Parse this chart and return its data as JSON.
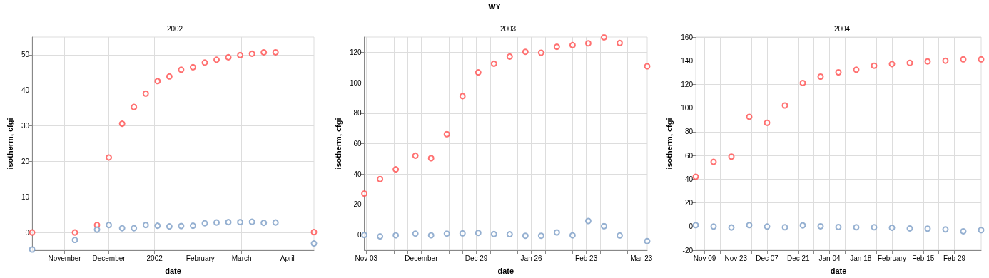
{
  "chart_data": [
    {
      "type": "scatter",
      "title": "2002",
      "annotations": [
        "WY"
      ],
      "xlabel": "date",
      "ylabel": "isotherm, cfgi",
      "grid": true,
      "marker": "circle",
      "x": [
        "2001-10-10",
        "2001-11-08",
        "2001-11-23",
        "2001-12-01",
        "2001-12-10",
        "2001-12-18",
        "2001-12-26",
        "2002-01-03",
        "2002-01-11",
        "2002-01-19",
        "2002-01-27",
        "2002-02-04",
        "2002-02-12",
        "2002-02-20",
        "2002-02-28",
        "2002-03-08",
        "2002-03-16",
        "2002-03-24",
        "2002-04-19"
      ],
      "xlim": [
        "2001-10-10",
        "2002-04-19"
      ],
      "xticks": [
        {
          "value": "2001-11-01",
          "label": "November"
        },
        {
          "value": "2001-12-01",
          "label": "December"
        },
        {
          "value": "2002-01-01",
          "label": "2002"
        },
        {
          "value": "2002-02-01",
          "label": "February"
        },
        {
          "value": "2002-03-01",
          "label": "March"
        },
        {
          "value": "2002-04-01",
          "label": "April"
        }
      ],
      "ylim": [
        -5,
        55
      ],
      "yticks": [
        0,
        10,
        20,
        30,
        40,
        50
      ],
      "series": [
        {
          "color": "#ff4d4d",
          "values": [
            0,
            0,
            2.1,
            21.1,
            30.6,
            35.3,
            39.1,
            42.6,
            43.9,
            45.8,
            46.5,
            47.8,
            48.6,
            49.3,
            49.9,
            50.3,
            50.7,
            50.7,
            0.1
          ]
        },
        {
          "color": "#7b9cc6",
          "values": [
            -4.8,
            -2.1,
            0.8,
            2.1,
            1.2,
            1.2,
            2.1,
            1.9,
            1.7,
            1.8,
            1.9,
            2.6,
            2.8,
            2.9,
            2.9,
            3.0,
            2.7,
            2.8,
            -3.1
          ]
        }
      ]
    },
    {
      "type": "scatter",
      "title": "2003",
      "xlabel": "date",
      "ylabel": "isotherm, cfgi",
      "grid": true,
      "marker": "circle",
      "x": [
        "2002-11-02",
        "2002-11-10",
        "2002-11-18",
        "2002-11-28",
        "2002-12-06",
        "2002-12-14",
        "2002-12-22",
        "2002-12-30",
        "2003-01-07",
        "2003-01-15",
        "2003-01-23",
        "2003-01-31",
        "2003-02-08",
        "2003-02-16",
        "2003-02-24",
        "2003-03-04",
        "2003-03-12",
        "2003-03-26"
      ],
      "xlim": [
        "2002-11-02",
        "2003-03-26"
      ],
      "xticks": [
        {
          "value": "2002-11-03",
          "label": "Nov 03"
        },
        {
          "value": "2002-11-10",
          "label": null
        },
        {
          "value": "2002-11-17",
          "label": null
        },
        {
          "value": "2002-11-24",
          "label": null
        },
        {
          "value": "2002-12-01",
          "label": "December"
        },
        {
          "value": "2002-12-08",
          "label": null
        },
        {
          "value": "2002-12-15",
          "label": null
        },
        {
          "value": "2002-12-22",
          "label": null
        },
        {
          "value": "2002-12-29",
          "label": "Dec 29"
        },
        {
          "value": "2003-01-05",
          "label": null
        },
        {
          "value": "2003-01-12",
          "label": null
        },
        {
          "value": "2003-01-19",
          "label": null
        },
        {
          "value": "2003-01-26",
          "label": "Jan 26"
        },
        {
          "value": "2003-02-02",
          "label": null
        },
        {
          "value": "2003-02-09",
          "label": null
        },
        {
          "value": "2003-02-16",
          "label": null
        },
        {
          "value": "2003-02-23",
          "label": "Feb 23"
        },
        {
          "value": "2003-03-02",
          "label": null
        },
        {
          "value": "2003-03-09",
          "label": null
        },
        {
          "value": "2003-03-16",
          "label": null
        },
        {
          "value": "2003-03-23",
          "label": "Mar 23"
        }
      ],
      "ylim": [
        -10,
        130
      ],
      "yticks": [
        0,
        20,
        40,
        60,
        80,
        100,
        120
      ],
      "series": [
        {
          "color": "#ff4d4d",
          "values": [
            27.2,
            36.7,
            43.1,
            52.1,
            50.4,
            66.2,
            91.2,
            106.8,
            112.5,
            117.2,
            120.3,
            119.7,
            123.6,
            124.7,
            125.9,
            129.8,
            126.1,
            110.8
          ]
        },
        {
          "color": "#7b9cc6",
          "values": [
            0,
            -0.9,
            -0.2,
            0.9,
            -0.2,
            0.9,
            1.1,
            1.4,
            0.6,
            0.5,
            -0.5,
            -0.5,
            1.7,
            -0.2,
            9.2,
            5.8,
            -0.3,
            -4.0
          ]
        }
      ]
    },
    {
      "type": "scatter",
      "title": "2004",
      "xlabel": "date",
      "ylabel": "isotherm, cfgi",
      "grid": true,
      "marker": "circle",
      "x": [
        "2003-11-05",
        "2003-11-13",
        "2003-11-21",
        "2003-11-29",
        "2003-12-07",
        "2003-12-15",
        "2003-12-23",
        "2003-12-31",
        "2004-01-08",
        "2004-01-16",
        "2004-01-24",
        "2004-02-01",
        "2004-02-09",
        "2004-02-17",
        "2004-02-25",
        "2004-03-04",
        "2004-03-12"
      ],
      "xlim": [
        "2003-11-05",
        "2004-03-12"
      ],
      "xticks": [
        {
          "value": "2003-11-09",
          "label": "Nov 09"
        },
        {
          "value": "2003-11-16",
          "label": null
        },
        {
          "value": "2003-11-23",
          "label": "Nov 23"
        },
        {
          "value": "2003-11-30",
          "label": null
        },
        {
          "value": "2003-12-07",
          "label": "Dec 07"
        },
        {
          "value": "2003-12-14",
          "label": null
        },
        {
          "value": "2003-12-21",
          "label": "Dec 21"
        },
        {
          "value": "2003-12-28",
          "label": null
        },
        {
          "value": "2004-01-04",
          "label": "Jan 04"
        },
        {
          "value": "2004-01-11",
          "label": null
        },
        {
          "value": "2004-01-18",
          "label": "Jan 18"
        },
        {
          "value": "2004-01-25",
          "label": null
        },
        {
          "value": "2004-02-01",
          "label": "February"
        },
        {
          "value": "2004-02-08",
          "label": null
        },
        {
          "value": "2004-02-15",
          "label": "Feb 15"
        },
        {
          "value": "2004-02-22",
          "label": null
        },
        {
          "value": "2004-02-29",
          "label": "Feb 29"
        },
        {
          "value": "2004-03-07",
          "label": null
        }
      ],
      "ylim": [
        -20,
        160
      ],
      "yticks": [
        -20,
        0,
        20,
        40,
        60,
        80,
        100,
        120,
        140,
        160
      ],
      "series": [
        {
          "color": "#ff4d4d",
          "values": [
            42,
            54.6,
            59,
            92.6,
            87.6,
            102.2,
            121.2,
            126.6,
            130.2,
            132.4,
            135.8,
            137.2,
            138.2,
            139.4,
            140,
            141.2,
            141.2
          ]
        },
        {
          "color": "#7b9cc6",
          "values": [
            1.2,
            0,
            -0.8,
            1.2,
            0,
            -0.6,
            1,
            0.2,
            -0.4,
            -0.6,
            -0.6,
            -1,
            -1.6,
            -1.8,
            -2.4,
            -4,
            -3
          ]
        }
      ]
    }
  ]
}
